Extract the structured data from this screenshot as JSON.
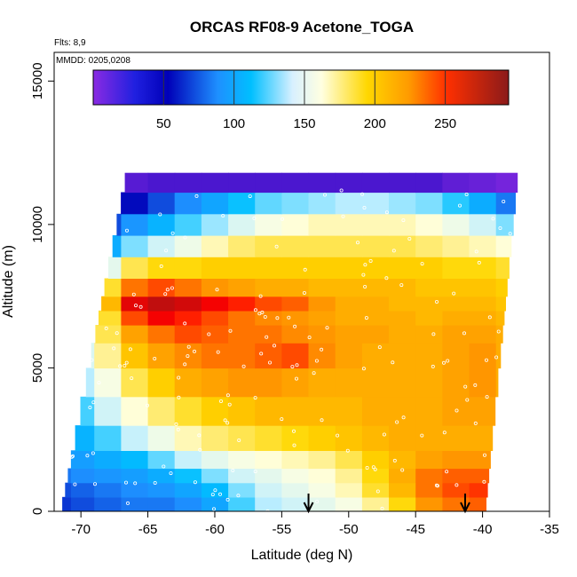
{
  "chart_data": {
    "type": "heatmap",
    "title": "ORCAS RF08-9 Acetone_TOGA",
    "xlabel": "Latitude (deg N)",
    "ylabel": "Altitude (m)",
    "xlim": [
      -72,
      -35
    ],
    "ylim": [
      0,
      16000
    ],
    "x_ticks": [
      -70,
      -65,
      -60,
      -55,
      -50,
      -45,
      -40,
      -35
    ],
    "y_ticks": [
      0,
      5000,
      10000,
      15000
    ],
    "annotations": {
      "flights": "Flts: 8,9",
      "dates": "MMDD: 0205,0208"
    },
    "colorbar": {
      "range": [
        0,
        295
      ],
      "ticks": [
        50,
        100,
        150,
        200,
        250
      ],
      "colors": [
        "#8a2be2",
        "#0000b8",
        "#1e90ff",
        "#00bfff",
        "#bfefff",
        "#ffffe0",
        "#ffd700",
        "#ff8c00",
        "#ff0000",
        "#8b1a1a"
      ]
    },
    "grid": false,
    "legend": "none",
    "latitude_bins": [
      -71.5,
      -70,
      -68,
      -66,
      -64,
      -62,
      -60,
      -58,
      -56,
      -54,
      -52,
      -50,
      -48,
      -46,
      -44,
      -42,
      -40,
      -38
    ],
    "altitude_bins": [
      250,
      750,
      1250,
      1750,
      2500,
      3500,
      4500,
      5500,
      6250,
      6750,
      7250,
      7750,
      8500,
      9250,
      10000,
      10750,
      11500
    ],
    "values": [
      [
        45,
        50,
        55,
        60,
        60,
        65,
        80,
        110,
        130,
        140,
        150,
        160,
        175,
        195,
        225,
        235,
        240,
        235
      ],
      [
        50,
        55,
        60,
        65,
        70,
        80,
        95,
        120,
        140,
        150,
        160,
        170,
        190,
        210,
        235,
        245,
        250,
        245
      ],
      [
        60,
        65,
        70,
        75,
        85,
        100,
        120,
        140,
        150,
        160,
        165,
        175,
        195,
        215,
        235,
        240,
        240,
        235
      ],
      [
        65,
        75,
        85,
        95,
        115,
        135,
        150,
        160,
        165,
        170,
        175,
        185,
        200,
        210,
        220,
        225,
        225,
        220
      ],
      [
        80,
        90,
        110,
        135,
        155,
        170,
        180,
        185,
        190,
        195,
        200,
        205,
        210,
        215,
        215,
        215,
        215,
        210
      ],
      [
        90,
        110,
        140,
        165,
        180,
        190,
        200,
        205,
        210,
        210,
        210,
        210,
        215,
        215,
        215,
        220,
        220,
        215
      ],
      [
        100,
        130,
        160,
        185,
        200,
        215,
        220,
        225,
        225,
        220,
        215,
        215,
        215,
        215,
        215,
        220,
        225,
        215
      ],
      [
        110,
        145,
        175,
        205,
        220,
        230,
        235,
        235,
        240,
        245,
        230,
        220,
        215,
        215,
        215,
        220,
        225,
        215
      ],
      [
        115,
        150,
        185,
        220,
        235,
        245,
        240,
        235,
        235,
        230,
        225,
        220,
        220,
        215,
        215,
        220,
        220,
        215
      ],
      [
        110,
        150,
        190,
        245,
        265,
        255,
        245,
        235,
        230,
        225,
        220,
        215,
        215,
        215,
        210,
        215,
        215,
        210
      ],
      [
        115,
        160,
        210,
        270,
        280,
        275,
        265,
        255,
        245,
        240,
        225,
        215,
        215,
        210,
        210,
        210,
        210,
        205
      ],
      [
        100,
        140,
        190,
        235,
        245,
        235,
        225,
        220,
        215,
        215,
        210,
        210,
        210,
        210,
        205,
        205,
        205,
        200
      ],
      [
        80,
        110,
        150,
        185,
        195,
        195,
        200,
        200,
        200,
        200,
        200,
        200,
        200,
        200,
        200,
        195,
        195,
        190
      ],
      [
        50,
        65,
        85,
        120,
        140,
        155,
        170,
        180,
        185,
        185,
        185,
        185,
        185,
        185,
        180,
        175,
        170,
        165
      ],
      [
        25,
        35,
        50,
        70,
        90,
        110,
        125,
        145,
        160,
        165,
        170,
        170,
        170,
        170,
        165,
        155,
        140,
        120
      ],
      [
        10,
        15,
        25,
        35,
        50,
        65,
        80,
        100,
        115,
        120,
        125,
        130,
        130,
        125,
        120,
        105,
        85,
        60
      ],
      [
        5,
        5,
        8,
        12,
        15,
        15,
        15,
        15,
        15,
        15,
        15,
        15,
        15,
        15,
        15,
        10,
        8,
        5
      ]
    ],
    "arrows_at_latitude": [
      -53,
      -41.3
    ]
  }
}
